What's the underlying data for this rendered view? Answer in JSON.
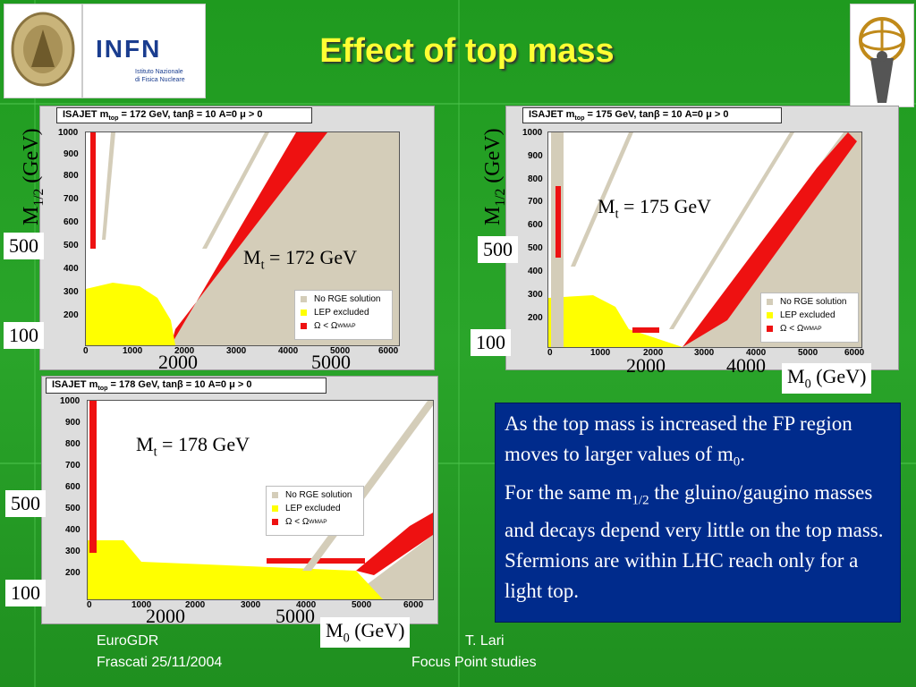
{
  "slide_title": "Effect of top mass",
  "logos": {
    "left_seal": "seal-logo",
    "infn": "INFN",
    "infn_sub1": "Istituto Nazionale",
    "infn_sub2": "di Fisica Nucleare",
    "right": "atlas-logo"
  },
  "plots": [
    {
      "header_pre": "ISAJET m",
      "header_sub": "top",
      "header_post": " = 172 GeV, tanβ = 10 A=0 μ > 0",
      "mt_label": "M",
      "mt_sub": "t",
      "mt_value": " = 172 GeV"
    },
    {
      "header_pre": "ISAJET m",
      "header_sub": "top",
      "header_post": " = 175 GeV, tanβ = 10 A=0 μ > 0",
      "mt_label": "M",
      "mt_sub": "t",
      "mt_value": " = 175 GeV"
    },
    {
      "header_pre": "ISAJET m",
      "header_sub": "top",
      "header_post": " = 178 GeV, tanβ = 10 A=0 μ > 0",
      "mt_label": "M",
      "mt_sub": "t",
      "mt_value": " = 178 GeV"
    }
  ],
  "legend": {
    "no_rge": "No RGE solution",
    "lep": "LEP excluded",
    "omega": "Ω < Ω",
    "omega_sub": "WMAP"
  },
  "axis": {
    "m12": "m",
    "m12_sub": "12",
    "m12_unit": "(GeV)",
    "m0_unit": "(GeV)",
    "yticks": [
      "1000",
      "900",
      "800",
      "700",
      "600",
      "500",
      "400",
      "300",
      "200",
      "100"
    ],
    "xticks": [
      "0",
      "1000",
      "2000",
      "3000",
      "4000",
      "5000",
      "6000"
    ]
  },
  "overlays": {
    "m12_axis_a": "M",
    "m12_axis_sub": "1/2",
    "m12_axis_b": " (GeV)",
    "v500": "500",
    "v100": "100",
    "p1_x1": "2000",
    "p1_x2": "5000",
    "p2_x1": "2000",
    "p2_x2": "4000",
    "p3_x1": "2000",
    "p3_x2": "5000",
    "m0_a": "M",
    "m0_sub": "0",
    "m0_b": " (GeV)"
  },
  "textbox": {
    "line1": "As the top mass is increased the FP region moves to larger values of m",
    "line1_sub": "0",
    "line1_end": ".",
    "line2": "For the same m",
    "line2_sub": "1/2",
    "line2_end": " the gluino/gaugino masses and decays depend very little on the top mass.",
    "line3": "Sfermions are within LHC reach only for a light top."
  },
  "footer": {
    "left1": "EuroGDR",
    "left2": "Frascati 25/11/2004",
    "right1": "T. Lari",
    "right2": "Focus Point studies"
  },
  "colors": {
    "bg": "#2aa52a",
    "title": "#ffff33",
    "textbox": "#002b8c",
    "red": "#ee1111",
    "yellow": "#ffff00",
    "tan": "#d4cdb9"
  }
}
